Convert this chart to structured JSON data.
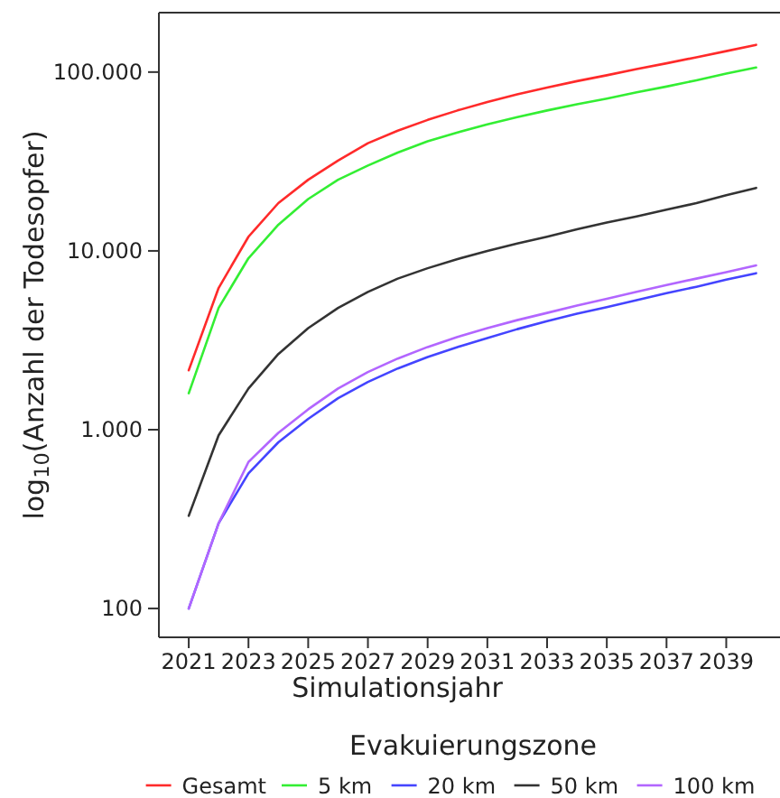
{
  "chart_data": {
    "type": "line",
    "xlabel": "Simulationsjahr",
    "ylabel": "log$_{10}$(Anzahl der Todesopfer)",
    "legend_title": "Evakuierungszone",
    "legend": "bottom",
    "log": true,
    "grid": false,
    "marker": "none",
    "line_style": "solid",
    "x": [
      2021,
      2022,
      2023,
      2024,
      2025,
      2026,
      2027,
      2028,
      2029,
      2030,
      2031,
      2032,
      2033,
      2034,
      2035,
      2036,
      2037,
      2038,
      2039,
      2040
    ],
    "xlim": [
      2020,
      2040.8
    ],
    "xticks": [
      2021,
      2023,
      2025,
      2027,
      2029,
      2031,
      2033,
      2035,
      2037,
      2039
    ],
    "ylim": [
      69,
      215000
    ],
    "yticks": [
      {
        "value": 100,
        "label": "100"
      },
      {
        "value": 1000,
        "label": "1.000"
      },
      {
        "value": 10000,
        "label": "10.000"
      },
      {
        "value": 100000,
        "label": "100.000"
      }
    ],
    "series": [
      {
        "name": "Gesamt",
        "color": "#ff2a2a",
        "values": [
          2150,
          6200,
          12000,
          18500,
          25000,
          32000,
          40000,
          47000,
          54000,
          61000,
          68000,
          75000,
          82000,
          89000,
          96000,
          104000,
          112000,
          121000,
          131000,
          142000
        ]
      },
      {
        "name": "5 km",
        "color": "#33ee33",
        "values": [
          1600,
          4800,
          9100,
          14000,
          19500,
          25000,
          30000,
          35500,
          41000,
          46000,
          51000,
          56000,
          61000,
          66000,
          71000,
          77000,
          83000,
          90000,
          98000,
          106000
        ]
      },
      {
        "name": "20 km",
        "color": "#4444ff",
        "values": [
          100,
          300,
          570,
          850,
          1150,
          1500,
          1850,
          2200,
          2550,
          2900,
          3250,
          3650,
          4050,
          4450,
          4850,
          5300,
          5800,
          6300,
          6900,
          7500
        ]
      },
      {
        "name": "50 km",
        "color": "#333333",
        "values": [
          330,
          930,
          1700,
          2650,
          3700,
          4800,
          5900,
          7000,
          8000,
          9000,
          10000,
          11000,
          12000,
          13200,
          14400,
          15600,
          17000,
          18500,
          20500,
          22500
        ]
      },
      {
        "name": "100 km",
        "color": "#b266ff",
        "values": [
          100,
          300,
          660,
          960,
          1300,
          1700,
          2100,
          2500,
          2900,
          3300,
          3700,
          4100,
          4500,
          4950,
          5400,
          5900,
          6450,
          7000,
          7600,
          8300
        ]
      }
    ]
  }
}
